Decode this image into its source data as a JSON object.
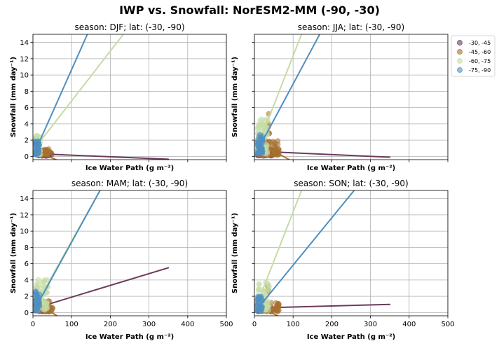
{
  "figure": {
    "suptitle": "IWP vs. Snowfall: NorESM2-MM  (-90, -30)"
  },
  "colors": {
    "-30, -45": "#6b3a5c",
    "-45, -60": "#a8712f",
    "-60, -75": "#c5dca5",
    "-75, -90": "#4e8fbf"
  },
  "legend": {
    "placement": "right-outside-top",
    "entries": [
      "-30, -45",
      "-45, -60",
      "-60, -75",
      "-75, -90"
    ]
  },
  "chart_data": [
    {
      "type": "scatter",
      "title": "season: DJF; lat: (-30, -90)",
      "xlabel": "Ice Water Path (g m⁻²)",
      "ylabel": "Snowfall (mm day⁻¹)",
      "xlim": [
        0,
        500
      ],
      "ylim": [
        -0.4,
        15
      ],
      "xticks": [
        0,
        100,
        200,
        300,
        400,
        500
      ],
      "yticks": [
        0,
        2,
        4,
        6,
        8,
        10,
        12,
        14
      ],
      "show_xticklabels": false,
      "show_yticklabels": true,
      "grid": true,
      "series": [
        {
          "name": "-30, -45",
          "clusters": [
            {
              "x": [
                4,
                50
              ],
              "y": [
                0.05,
                0.5
              ],
              "n": 35
            }
          ],
          "fit": [
            [
              0,
              0.35
            ],
            [
              350,
              -0.35
            ]
          ]
        },
        {
          "name": "-45, -60",
          "clusters": [
            {
              "x": [
                14,
                48
              ],
              "y": [
                0.1,
                0.9
              ],
              "n": 35
            }
          ],
          "fit": [
            [
              8,
              0.6
            ],
            [
              60,
              -0.4
            ]
          ]
        },
        {
          "name": "-60, -75",
          "clusters": [
            {
              "x": [
                3,
                20
              ],
              "y": [
                0.2,
                2.6
              ],
              "n": 40
            }
          ],
          "fit": [
            [
              0,
              0.7
            ],
            [
              250,
              16
            ]
          ]
        },
        {
          "name": "-75, -90",
          "clusters": [
            {
              "x": [
                3,
                18
              ],
              "y": [
                0.2,
                1.9
              ],
              "n": 40
            }
          ],
          "fit": [
            [
              0,
              0.0
            ],
            [
              150,
              16
            ]
          ]
        }
      ]
    },
    {
      "type": "scatter",
      "title": "season: JJA; lat: (-30, -90)",
      "xlabel": "Ice Water Path (g m⁻²)",
      "ylabel": "Snowfall (mm day⁻¹)",
      "xlim": [
        0,
        500
      ],
      "ylim": [
        -0.4,
        15
      ],
      "xticks": [
        0,
        100,
        200,
        300,
        400,
        500
      ],
      "yticks": [
        0,
        2,
        4,
        6,
        8,
        10,
        12,
        14
      ],
      "show_xticklabels": false,
      "show_yticklabels": false,
      "grid": true,
      "series": [
        {
          "name": "-30, -45",
          "clusters": [
            {
              "x": [
                5,
                60
              ],
              "y": [
                0.05,
                0.9
              ],
              "n": 35
            }
          ],
          "fit": [
            [
              0,
              0.65
            ],
            [
              350,
              -0.1
            ]
          ]
        },
        {
          "name": "-45, -60",
          "clusters": [
            {
              "x": [
                10,
                65
              ],
              "y": [
                0.1,
                2.0
              ],
              "n": 60
            },
            {
              "x": [
                33,
                40
              ],
              "y": [
                2.8,
                6.1
              ],
              "n": 7
            }
          ],
          "fit": [
            [
              5,
              1.8
            ],
            [
              90,
              -0.4
            ]
          ]
        },
        {
          "name": "-60, -75",
          "clusters": [
            {
              "x": [
                5,
                35
              ],
              "y": [
                0.3,
                4.6
              ],
              "n": 55
            }
          ],
          "fit": [
            [
              0,
              0.2
            ],
            [
              130,
              16
            ]
          ]
        },
        {
          "name": "-75, -90",
          "clusters": [
            {
              "x": [
                5,
                22
              ],
              "y": [
                0.3,
                2.8
              ],
              "n": 40
            }
          ],
          "fit": [
            [
              0,
              0.0
            ],
            [
              180,
              16
            ]
          ]
        }
      ]
    },
    {
      "type": "scatter",
      "title": "season: MAM; lat: (-30, -90)",
      "xlabel": "Ice Water Path (g m⁻²)",
      "ylabel": "Snowfall (mm day⁻¹)",
      "xlim": [
        0,
        500
      ],
      "ylim": [
        -0.4,
        15
      ],
      "xticks": [
        0,
        100,
        200,
        300,
        400,
        500
      ],
      "yticks": [
        0,
        2,
        4,
        6,
        8,
        10,
        12,
        14
      ],
      "show_xticklabels": true,
      "show_yticklabels": true,
      "grid": true,
      "series": [
        {
          "name": "-30, -45",
          "clusters": [
            {
              "x": [
                5,
                45
              ],
              "y": [
                0.1,
                1.0
              ],
              "n": 30
            }
          ],
          "fit": [
            [
              0,
              0.45
            ],
            [
              350,
              5.5
            ]
          ]
        },
        {
          "name": "-45, -60",
          "clusters": [
            {
              "x": [
                15,
                52
              ],
              "y": [
                0.1,
                1.6
              ],
              "n": 40
            }
          ],
          "fit": [
            [
              5,
              1.3
            ],
            [
              62,
              -0.4
            ]
          ]
        },
        {
          "name": "-60, -75",
          "clusters": [
            {
              "x": [
                8,
                38
              ],
              "y": [
                0.3,
                4.2
              ],
              "n": 55
            }
          ],
          "fit": [
            [
              0,
              0.3
            ],
            [
              185,
              16
            ]
          ]
        },
        {
          "name": "-75, -90",
          "clusters": [
            {
              "x": [
                4,
                18
              ],
              "y": [
                0.2,
                2.7
              ],
              "n": 40
            }
          ],
          "fit": [
            [
              0,
              0.0
            ],
            [
              185,
              16
            ]
          ]
        }
      ]
    },
    {
      "type": "scatter",
      "title": "season: SON; lat: (-30, -90)",
      "xlabel": "Ice Water Path (g m⁻²)",
      "ylabel": "Snowfall (mm day⁻¹)",
      "xlim": [
        0,
        500
      ],
      "ylim": [
        -0.4,
        15
      ],
      "xticks": [
        0,
        100,
        200,
        300,
        400,
        500
      ],
      "yticks": [
        0,
        2,
        4,
        6,
        8,
        10,
        12,
        14
      ],
      "show_xticklabels": true,
      "show_yticklabels": false,
      "grid": true,
      "series": [
        {
          "name": "-30, -45",
          "clusters": [
            {
              "x": [
                5,
                60
              ],
              "y": [
                0.1,
                0.9
              ],
              "n": 30
            }
          ],
          "fit": [
            [
              0,
              0.55
            ],
            [
              350,
              1.0
            ]
          ]
        },
        {
          "name": "-45, -60",
          "clusters": [
            {
              "x": [
                15,
                65
              ],
              "y": [
                0.1,
                1.4
              ],
              "n": 45
            },
            {
              "x": [
                33,
                38
              ],
              "y": [
                2.5,
                3.3
              ],
              "n": 4
            }
          ],
          "fit": [
            [
              5,
              0.9
            ],
            [
              60,
              -0.4
            ]
          ]
        },
        {
          "name": "-60, -75",
          "clusters": [
            {
              "x": [
                10,
                40
              ],
              "y": [
                0.3,
                3.8
              ],
              "n": 50
            }
          ],
          "fit": [
            [
              0,
              0.2
            ],
            [
              130,
              16
            ]
          ]
        },
        {
          "name": "-75, -90",
          "clusters": [
            {
              "x": [
                5,
                20
              ],
              "y": [
                0.2,
                2.0
              ],
              "n": 35
            }
          ],
          "fit": [
            [
              0,
              0.0
            ],
            [
              275,
              16
            ]
          ]
        }
      ]
    }
  ]
}
